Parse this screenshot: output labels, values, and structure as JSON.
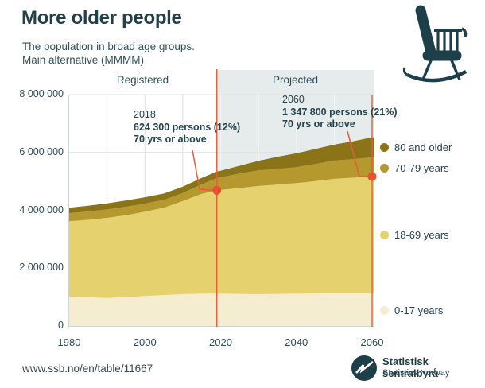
{
  "chart_data": {
    "type": "area",
    "stacked": true,
    "title": "More older people",
    "subtitle_lines": [
      "The population in broad age groups.",
      "Main alternative (MMMM)"
    ],
    "xlabel": "",
    "ylabel": "",
    "ylim": [
      0,
      8000000
    ],
    "xlim": [
      1980,
      2060
    ],
    "grid": true,
    "legend_position": "right",
    "y_tick_values": [
      0,
      2000000,
      4000000,
      6000000,
      8000000
    ],
    "y_tick_labels": [
      "0",
      "2 000 000",
      "4 000 000",
      "6 000 000",
      "8 000 000"
    ],
    "x_tick_values": [
      1980,
      2000,
      2020,
      2040,
      2060
    ],
    "x_tick_labels": [
      "1980",
      "2000",
      "2020",
      "2040",
      "2060"
    ],
    "x": [
      1980,
      1985,
      1990,
      1995,
      2000,
      2005,
      2010,
      2015,
      2019,
      2020,
      2025,
      2030,
      2035,
      2040,
      2045,
      2050,
      2055,
      2060
    ],
    "series": [
      {
        "label": "0-17 years",
        "color": "#f4edcf",
        "values": [
          1020000,
          990000,
          970000,
          1000000,
          1040000,
          1070000,
          1100000,
          1120000,
          1120000,
          1120000,
          1110000,
          1100000,
          1110000,
          1120000,
          1130000,
          1140000,
          1140000,
          1150000
        ]
      },
      {
        "label": "18-69 years",
        "color": "#e5d26f",
        "values": [
          2600000,
          2680000,
          2770000,
          2830000,
          2910000,
          3020000,
          3220000,
          3450000,
          3570000,
          3590000,
          3660000,
          3740000,
          3780000,
          3820000,
          3880000,
          3950000,
          3990000,
          4020000
        ]
      },
      {
        "label": "70-79 years",
        "color": "#b5992e",
        "values": [
          280000,
          290000,
          290000,
          290000,
          280000,
          270000,
          280000,
          330000,
          420000,
          430000,
          500000,
          540000,
          540000,
          550000,
          590000,
          630000,
          640000,
          660000
        ]
      },
      {
        "label": "80 and older",
        "color": "#8b7418",
        "values": [
          190000,
          200000,
          210000,
          220000,
          220000,
          220000,
          220000,
          220000,
          230000,
          230000,
          270000,
          330000,
          420000,
          480000,
          520000,
          550000,
          620000,
          690000
        ]
      }
    ],
    "zones": {
      "registered_label": "Registered",
      "projected_label": "Projected",
      "registered_end_year": 2019
    },
    "annotations": [
      {
        "year_label": "2018",
        "line1": "624 300 persons (12%)",
        "line2": "70 yrs or above",
        "marker_year": 2019,
        "marker_value": 4690000
      },
      {
        "year_label": "2060",
        "line1": "1 347 800 persons (21%)",
        "line2": "70 yrs or above",
        "marker_year": 2060,
        "marker_value": 5170000
      }
    ],
    "colors": {
      "projected_bg": "#e6ebec",
      "gridline": "#dcdfe1",
      "gridline_on_shade": "#f2f5f5",
      "axis": "#ccd4d8",
      "divider": "#e85c35",
      "marker": "#e8522e",
      "text_dark_teal": "#22404a"
    }
  },
  "icons": {
    "rocking_chair": "rocking-chair-icon",
    "logo_mark": "ssb-logo-icon"
  },
  "footer": {
    "source_url": "www.ssb.no/en/table/11667",
    "org_name": "Statistisk sentralbyrå",
    "org_name_en": "Statistics Norway"
  }
}
